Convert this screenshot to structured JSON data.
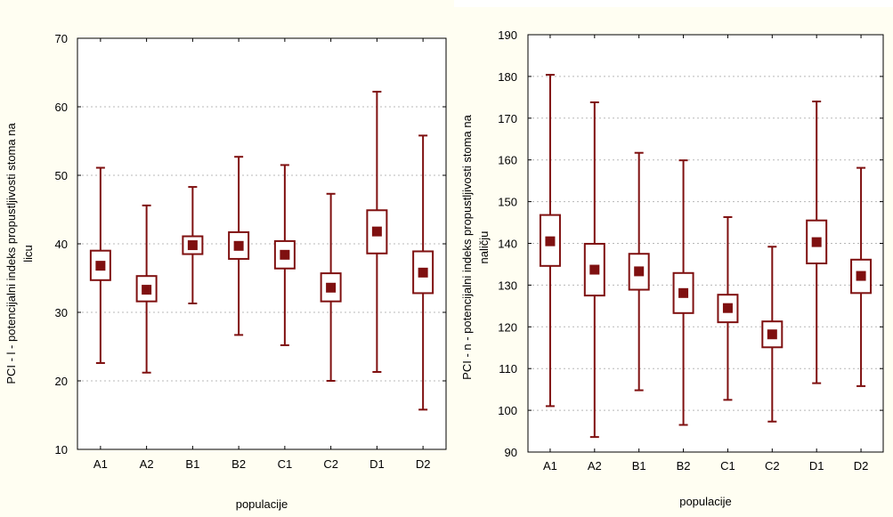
{
  "chart_data": [
    {
      "type": "box",
      "xlabel": "populacije",
      "ylabel_lines": [
        "PCI - l - potencijalni indeks propustljivosti stoma na",
        "licu"
      ],
      "categories": [
        "A1",
        "A2",
        "B1",
        "B2",
        "C1",
        "C2",
        "D1",
        "D2"
      ],
      "ylim": [
        10,
        70
      ],
      "yticks": [
        10,
        20,
        30,
        40,
        50,
        60,
        70
      ],
      "grid": true,
      "series": [
        {
          "category": "A1",
          "mean": 36.8,
          "box_low": 34.7,
          "box_high": 39.0,
          "whisker_low": 22.6,
          "whisker_high": 51.1
        },
        {
          "category": "A2",
          "mean": 33.3,
          "box_low": 31.6,
          "box_high": 35.3,
          "whisker_low": 21.2,
          "whisker_high": 45.6
        },
        {
          "category": "B1",
          "mean": 39.8,
          "box_low": 38.5,
          "box_high": 41.1,
          "whisker_low": 31.3,
          "whisker_high": 48.3
        },
        {
          "category": "B2",
          "mean": 39.7,
          "box_low": 37.8,
          "box_high": 41.7,
          "whisker_low": 26.7,
          "whisker_high": 52.7
        },
        {
          "category": "C1",
          "mean": 38.4,
          "box_low": 36.4,
          "box_high": 40.4,
          "whisker_low": 25.2,
          "whisker_high": 51.5
        },
        {
          "category": "C2",
          "mean": 33.6,
          "box_low": 31.6,
          "box_high": 35.7,
          "whisker_low": 20.0,
          "whisker_high": 47.3
        },
        {
          "category": "D1",
          "mean": 41.8,
          "box_low": 38.6,
          "box_high": 44.9,
          "whisker_low": 21.3,
          "whisker_high": 62.2
        },
        {
          "category": "D2",
          "mean": 35.8,
          "box_low": 32.8,
          "box_high": 38.9,
          "whisker_low": 15.8,
          "whisker_high": 55.8
        }
      ]
    },
    {
      "type": "box",
      "xlabel": "populacije",
      "ylabel_lines": [
        "PCI - n - potencijalni indeks propustljivosti stoma na",
        "naličju"
      ],
      "categories": [
        "A1",
        "A2",
        "B1",
        "B2",
        "C1",
        "C2",
        "D1",
        "D2"
      ],
      "ylim": [
        90,
        190
      ],
      "yticks": [
        90,
        100,
        110,
        120,
        130,
        140,
        150,
        160,
        170,
        180,
        190
      ],
      "grid": true,
      "series": [
        {
          "category": "A1",
          "mean": 140.5,
          "box_low": 134.6,
          "box_high": 146.8,
          "whisker_low": 101.0,
          "whisker_high": 180.4
        },
        {
          "category": "A2",
          "mean": 133.7,
          "box_low": 127.5,
          "box_high": 139.9,
          "whisker_low": 93.6,
          "whisker_high": 173.8
        },
        {
          "category": "B1",
          "mean": 133.3,
          "box_low": 128.9,
          "box_high": 137.5,
          "whisker_low": 104.8,
          "whisker_high": 161.7
        },
        {
          "category": "B2",
          "mean": 128.1,
          "box_low": 123.3,
          "box_high": 132.9,
          "whisker_low": 96.5,
          "whisker_high": 159.9
        },
        {
          "category": "C1",
          "mean": 124.5,
          "box_low": 121.1,
          "box_high": 127.7,
          "whisker_low": 102.5,
          "whisker_high": 146.3
        },
        {
          "category": "C2",
          "mean": 118.2,
          "box_low": 115.1,
          "box_high": 121.3,
          "whisker_low": 97.3,
          "whisker_high": 139.2
        },
        {
          "category": "D1",
          "mean": 140.3,
          "box_low": 135.2,
          "box_high": 145.5,
          "whisker_low": 106.5,
          "whisker_high": 174.0
        },
        {
          "category": "D2",
          "mean": 132.2,
          "box_low": 128.1,
          "box_high": 136.1,
          "whisker_low": 105.8,
          "whisker_high": 158.1
        }
      ]
    }
  ]
}
